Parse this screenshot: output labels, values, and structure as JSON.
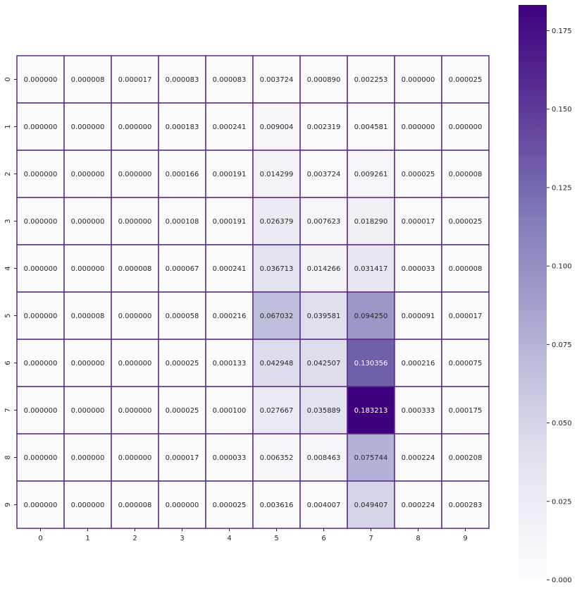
{
  "chart_data": {
    "type": "heatmap",
    "title": "",
    "xlabel": "",
    "ylabel": "",
    "x_categories": [
      "0",
      "1",
      "2",
      "3",
      "4",
      "5",
      "6",
      "7",
      "8",
      "9"
    ],
    "y_categories": [
      "0",
      "1",
      "2",
      "3",
      "4",
      "5",
      "6",
      "7",
      "8",
      "9"
    ],
    "values": [
      [
        0.0,
        8e-06,
        1.7e-05,
        8.3e-05,
        8.3e-05,
        0.003724,
        0.00089,
        0.002253,
        0.0,
        2.5e-05
      ],
      [
        0.0,
        0.0,
        0.0,
        0.000183,
        0.000241,
        0.009004,
        0.002319,
        0.004581,
        0.0,
        0.0
      ],
      [
        0.0,
        0.0,
        0.0,
        0.000166,
        0.000191,
        0.014299,
        0.003724,
        0.009261,
        2.5e-05,
        8e-06
      ],
      [
        0.0,
        0.0,
        0.0,
        0.000108,
        0.000191,
        0.026379,
        0.007623,
        0.01829,
        1.7e-05,
        2.5e-05
      ],
      [
        0.0,
        0.0,
        8e-06,
        6.7e-05,
        0.000241,
        0.036713,
        0.014266,
        0.031417,
        3.3e-05,
        8e-06
      ],
      [
        0.0,
        8e-06,
        0.0,
        5.8e-05,
        0.000216,
        0.067032,
        0.039581,
        0.09425,
        9.1e-05,
        1.7e-05
      ],
      [
        0.0,
        0.0,
        0.0,
        2.5e-05,
        0.000133,
        0.042948,
        0.042507,
        0.130356,
        0.000216,
        7.5e-05
      ],
      [
        0.0,
        0.0,
        0.0,
        2.5e-05,
        0.0001,
        0.027667,
        0.035889,
        0.183213,
        0.000333,
        0.000175
      ],
      [
        0.0,
        0.0,
        0.0,
        1.7e-05,
        3.3e-05,
        0.006352,
        0.008463,
        0.075744,
        0.000224,
        0.000208
      ],
      [
        0.0,
        0.0,
        8e-06,
        0.0,
        2.5e-05,
        0.003616,
        0.004007,
        0.049407,
        0.000224,
        0.000283
      ]
    ],
    "value_range": [
      0,
      0.183213
    ],
    "value_format": "6 decimals",
    "colormap": "Purples",
    "cell_border_color": "#5b2a86",
    "colorbar": {
      "placement": "right",
      "ticks": [
        "0.000",
        "0.025",
        "0.050",
        "0.075",
        "0.100",
        "0.125",
        "0.150",
        "0.175"
      ],
      "tick_values": [
        0,
        0.025,
        0.05,
        0.075,
        0.1,
        0.125,
        0.15,
        0.175
      ]
    },
    "grid": false
  }
}
